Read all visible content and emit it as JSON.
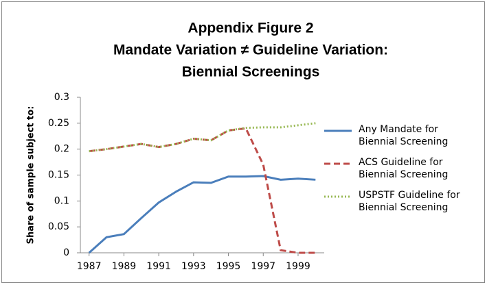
{
  "chart_data": {
    "type": "line",
    "title": [
      "Appendix Figure 2",
      "Mandate Variation ≠ Guideline Variation:",
      "Biennial Screenings"
    ],
    "y_label": "Share of sample subject to:",
    "x": [
      1987,
      1988,
      1989,
      1990,
      1991,
      1992,
      1993,
      1994,
      1995,
      1996,
      1997,
      1998,
      1999,
      2000
    ],
    "xlim": [
      1986.5,
      2000.5
    ],
    "xticks": [
      1987,
      1989,
      1991,
      1993,
      1995,
      1997,
      1999
    ],
    "ylim": [
      0,
      0.3
    ],
    "yticks": [
      0,
      0.05,
      0.1,
      0.15,
      0.2,
      0.25,
      0.3
    ],
    "grid": false,
    "legend": "right",
    "series": [
      {
        "name": "Any Mandate for Biennial Screening",
        "color": "#4a7ebb",
        "dash": "solid",
        "values": [
          0,
          0.03,
          0.036,
          0.067,
          0.097,
          0.118,
          0.136,
          0.135,
          0.147,
          0.147,
          0.148,
          0.141,
          0.143,
          0.141
        ]
      },
      {
        "name": "ACS Guideline for Biennial Screening",
        "color": "#be4b48",
        "dash": "dashed",
        "values": [
          0.196,
          0.2,
          0.205,
          0.21,
          0.204,
          0.21,
          0.22,
          0.217,
          0.236,
          0.24,
          0.17,
          0.005,
          0,
          0
        ]
      },
      {
        "name": "USPSTF Guideline for Biennial Screening",
        "color": "#98b954",
        "dash": "dotted",
        "values": [
          0.196,
          0.2,
          0.205,
          0.21,
          0.204,
          0.21,
          0.22,
          0.217,
          0.236,
          0.241,
          0.242,
          0.242,
          0.246,
          0.25
        ]
      }
    ]
  }
}
